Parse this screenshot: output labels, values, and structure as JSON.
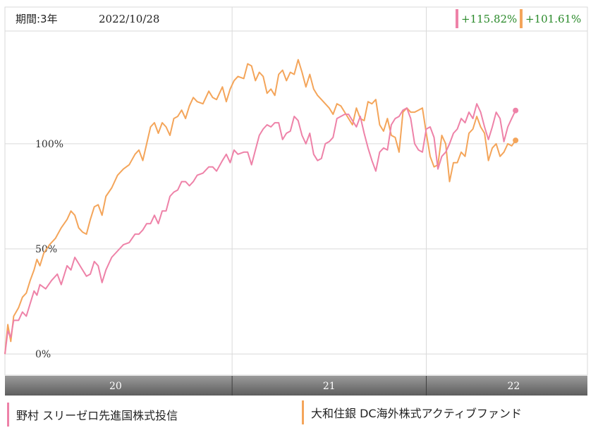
{
  "header": {
    "period_label": "期間:3年",
    "date_label": "2022/10/28"
  },
  "colors": {
    "series1": "#ee82a8",
    "series2": "#f4a55a",
    "return_text": "#2a8a2a",
    "grid": "#d9d9d9",
    "axis_bar": "#7a7a7a"
  },
  "chart_data": {
    "type": "line",
    "title": "",
    "xlabel": "",
    "ylabel": "",
    "ylim": [
      -10,
      165
    ],
    "y_ticks": [
      {
        "value": 0,
        "label": "0%"
      },
      {
        "value": 50,
        "label": "50%"
      },
      {
        "value": 100,
        "label": "100%"
      }
    ],
    "x_range": [
      2019.83,
      2022.83
    ],
    "x_dividers": [
      2021.0,
      2022.0
    ],
    "x_ticks": [
      {
        "value": 2020.4,
        "label": "20"
      },
      {
        "value": 2021.5,
        "label": "21"
      },
      {
        "value": 2022.45,
        "label": "22"
      }
    ],
    "grid": true,
    "series": [
      {
        "name": "野村 スリーゼロ先進国株式投信",
        "return_label": "+115.82%",
        "points": [
          [
            2019.83,
            0
          ],
          [
            2019.845,
            11
          ],
          [
            2019.86,
            8
          ],
          [
            2019.875,
            16
          ],
          [
            2019.9,
            16
          ],
          [
            2019.92,
            20
          ],
          [
            2019.94,
            18
          ],
          [
            2019.96,
            24
          ],
          [
            2019.98,
            30
          ],
          [
            2019.995,
            28
          ],
          [
            2020.01,
            33
          ],
          [
            2020.04,
            31
          ],
          [
            2020.07,
            35
          ],
          [
            2020.1,
            38
          ],
          [
            2020.12,
            33
          ],
          [
            2020.15,
            42
          ],
          [
            2020.17,
            40
          ],
          [
            2020.19,
            46
          ],
          [
            2020.21,
            43
          ],
          [
            2020.23,
            40
          ],
          [
            2020.25,
            37
          ],
          [
            2020.27,
            38
          ],
          [
            2020.29,
            44
          ],
          [
            2020.31,
            42
          ],
          [
            2020.33,
            34
          ],
          [
            2020.35,
            40
          ],
          [
            2020.38,
            46
          ],
          [
            2020.41,
            49
          ],
          [
            2020.44,
            52
          ],
          [
            2020.47,
            53
          ],
          [
            2020.5,
            57
          ],
          [
            2020.52,
            57
          ],
          [
            2020.54,
            59
          ],
          [
            2020.56,
            62
          ],
          [
            2020.58,
            62
          ],
          [
            2020.6,
            66
          ],
          [
            2020.62,
            62
          ],
          [
            2020.64,
            68
          ],
          [
            2020.66,
            68
          ],
          [
            2020.68,
            75
          ],
          [
            2020.7,
            77
          ],
          [
            2020.72,
            78
          ],
          [
            2020.74,
            82
          ],
          [
            2020.76,
            82
          ],
          [
            2020.78,
            80
          ],
          [
            2020.8,
            82
          ],
          [
            2020.82,
            85
          ],
          [
            2020.85,
            86
          ],
          [
            2020.88,
            89
          ],
          [
            2020.9,
            89
          ],
          [
            2020.92,
            87
          ],
          [
            2020.95,
            92
          ],
          [
            2020.97,
            95
          ],
          [
            2020.99,
            91
          ],
          [
            2021.01,
            97
          ],
          [
            2021.03,
            95
          ],
          [
            2021.06,
            96
          ],
          [
            2021.08,
            96
          ],
          [
            2021.1,
            90
          ],
          [
            2021.12,
            97
          ],
          [
            2021.14,
            104
          ],
          [
            2021.16,
            107
          ],
          [
            2021.18,
            109
          ],
          [
            2021.2,
            108
          ],
          [
            2021.22,
            110
          ],
          [
            2021.24,
            110
          ],
          [
            2021.26,
            102
          ],
          [
            2021.28,
            105
          ],
          [
            2021.3,
            106
          ],
          [
            2021.32,
            113
          ],
          [
            2021.34,
            111
          ],
          [
            2021.36,
            104
          ],
          [
            2021.38,
            100
          ],
          [
            2021.4,
            105
          ],
          [
            2021.42,
            95
          ],
          [
            2021.44,
            92
          ],
          [
            2021.46,
            93
          ],
          [
            2021.48,
            100
          ],
          [
            2021.5,
            101
          ],
          [
            2021.52,
            103
          ],
          [
            2021.54,
            112
          ],
          [
            2021.56,
            113
          ],
          [
            2021.58,
            114
          ],
          [
            2021.6,
            114
          ],
          [
            2021.62,
            111
          ],
          [
            2021.64,
            108
          ],
          [
            2021.66,
            113
          ],
          [
            2021.68,
            105
          ],
          [
            2021.7,
            98
          ],
          [
            2021.72,
            92
          ],
          [
            2021.74,
            87
          ],
          [
            2021.76,
            96
          ],
          [
            2021.78,
            98
          ],
          [
            2021.8,
            97
          ],
          [
            2021.82,
            109
          ],
          [
            2021.84,
            112
          ],
          [
            2021.86,
            113
          ],
          [
            2021.88,
            116
          ],
          [
            2021.9,
            117
          ],
          [
            2021.92,
            112
          ],
          [
            2021.94,
            100
          ],
          [
            2021.96,
            97
          ],
          [
            2021.98,
            96
          ],
          [
            2022.0,
            107
          ],
          [
            2022.02,
            108
          ],
          [
            2022.04,
            103
          ],
          [
            2022.06,
            88
          ],
          [
            2022.08,
            94
          ],
          [
            2022.1,
            96
          ],
          [
            2022.12,
            100
          ],
          [
            2022.14,
            105
          ],
          [
            2022.16,
            107
          ],
          [
            2022.18,
            112
          ],
          [
            2022.2,
            110
          ],
          [
            2022.22,
            115
          ],
          [
            2022.24,
            112
          ],
          [
            2022.26,
            119
          ],
          [
            2022.28,
            115
          ],
          [
            2022.3,
            108
          ],
          [
            2022.32,
            102
          ],
          [
            2022.34,
            108
          ],
          [
            2022.36,
            115
          ],
          [
            2022.38,
            112
          ],
          [
            2022.4,
            101
          ],
          [
            2022.42,
            108
          ],
          [
            2022.44,
            112
          ],
          [
            2022.46,
            115.82
          ]
        ]
      },
      {
        "name": "大和住銀 DC海外株式アクティブファンド",
        "return_label": "+101.61%",
        "points": [
          [
            2019.83,
            0
          ],
          [
            2019.845,
            14
          ],
          [
            2019.86,
            6
          ],
          [
            2019.875,
            18
          ],
          [
            2019.9,
            22
          ],
          [
            2019.92,
            27
          ],
          [
            2019.94,
            29
          ],
          [
            2019.96,
            35
          ],
          [
            2019.98,
            40
          ],
          [
            2019.995,
            45
          ],
          [
            2020.01,
            42
          ],
          [
            2020.03,
            48
          ],
          [
            2020.06,
            52
          ],
          [
            2020.09,
            55
          ],
          [
            2020.12,
            60
          ],
          [
            2020.15,
            64
          ],
          [
            2020.17,
            68
          ],
          [
            2020.19,
            66
          ],
          [
            2020.21,
            60
          ],
          [
            2020.23,
            58
          ],
          [
            2020.25,
            57
          ],
          [
            2020.27,
            64
          ],
          [
            2020.29,
            70
          ],
          [
            2020.31,
            71
          ],
          [
            2020.33,
            66
          ],
          [
            2020.35,
            75
          ],
          [
            2020.38,
            79
          ],
          [
            2020.41,
            85
          ],
          [
            2020.44,
            88
          ],
          [
            2020.47,
            90
          ],
          [
            2020.5,
            95
          ],
          [
            2020.52,
            97
          ],
          [
            2020.54,
            92
          ],
          [
            2020.56,
            100
          ],
          [
            2020.58,
            108
          ],
          [
            2020.6,
            110
          ],
          [
            2020.62,
            105
          ],
          [
            2020.64,
            110
          ],
          [
            2020.66,
            108
          ],
          [
            2020.68,
            104
          ],
          [
            2020.7,
            112
          ],
          [
            2020.72,
            113
          ],
          [
            2020.74,
            116
          ],
          [
            2020.76,
            112
          ],
          [
            2020.78,
            118
          ],
          [
            2020.8,
            122
          ],
          [
            2020.82,
            120
          ],
          [
            2020.85,
            119
          ],
          [
            2020.88,
            125
          ],
          [
            2020.9,
            122
          ],
          [
            2020.92,
            121
          ],
          [
            2020.95,
            127
          ],
          [
            2020.97,
            120
          ],
          [
            2020.99,
            126
          ],
          [
            2021.01,
            130
          ],
          [
            2021.03,
            132
          ],
          [
            2021.06,
            131
          ],
          [
            2021.08,
            138
          ],
          [
            2021.1,
            137
          ],
          [
            2021.12,
            130
          ],
          [
            2021.14,
            134
          ],
          [
            2021.16,
            132
          ],
          [
            2021.18,
            124
          ],
          [
            2021.2,
            126
          ],
          [
            2021.22,
            123
          ],
          [
            2021.24,
            133
          ],
          [
            2021.26,
            135
          ],
          [
            2021.28,
            130
          ],
          [
            2021.3,
            134
          ],
          [
            2021.32,
            133
          ],
          [
            2021.34,
            140
          ],
          [
            2021.36,
            134
          ],
          [
            2021.38,
            127
          ],
          [
            2021.4,
            133
          ],
          [
            2021.42,
            126
          ],
          [
            2021.44,
            123
          ],
          [
            2021.46,
            121
          ],
          [
            2021.48,
            119
          ],
          [
            2021.5,
            117
          ],
          [
            2021.52,
            114
          ],
          [
            2021.54,
            119
          ],
          [
            2021.56,
            118
          ],
          [
            2021.58,
            115
          ],
          [
            2021.6,
            112
          ],
          [
            2021.62,
            109
          ],
          [
            2021.64,
            117
          ],
          [
            2021.66,
            112
          ],
          [
            2021.68,
            111
          ],
          [
            2021.7,
            120
          ],
          [
            2021.72,
            119
          ],
          [
            2021.74,
            121
          ],
          [
            2021.76,
            109
          ],
          [
            2021.78,
            106
          ],
          [
            2021.8,
            112
          ],
          [
            2021.82,
            104
          ],
          [
            2021.84,
            103
          ],
          [
            2021.86,
            96
          ],
          [
            2021.88,
            115
          ],
          [
            2021.9,
            117
          ],
          [
            2021.92,
            115
          ],
          [
            2021.94,
            115
          ],
          [
            2021.96,
            116
          ],
          [
            2021.98,
            117
          ],
          [
            2022.0,
            105
          ],
          [
            2022.02,
            94
          ],
          [
            2022.04,
            89
          ],
          [
            2022.06,
            90
          ],
          [
            2022.08,
            104
          ],
          [
            2022.1,
            100
          ],
          [
            2022.12,
            82
          ],
          [
            2022.14,
            91
          ],
          [
            2022.16,
            91
          ],
          [
            2022.18,
            96
          ],
          [
            2022.2,
            94
          ],
          [
            2022.22,
            105
          ],
          [
            2022.24,
            107
          ],
          [
            2022.26,
            113
          ],
          [
            2022.28,
            108
          ],
          [
            2022.3,
            105
          ],
          [
            2022.32,
            92
          ],
          [
            2022.34,
            98
          ],
          [
            2022.36,
            100
          ],
          [
            2022.38,
            94
          ],
          [
            2022.4,
            96
          ],
          [
            2022.42,
            100
          ],
          [
            2022.44,
            99
          ],
          [
            2022.46,
            101.61
          ]
        ]
      }
    ]
  }
}
